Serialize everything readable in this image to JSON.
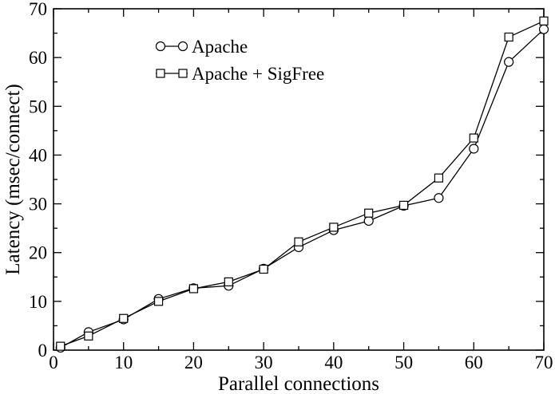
{
  "chart_data": {
    "type": "line",
    "title": "",
    "xlabel": "Parallel connections",
    "ylabel": "Latency (msec/connect)",
    "xlim": [
      0,
      70
    ],
    "ylim": [
      0,
      70
    ],
    "xticks": [
      0,
      10,
      20,
      30,
      40,
      50,
      60,
      70
    ],
    "yticks": [
      0,
      10,
      20,
      30,
      40,
      50,
      60,
      70
    ],
    "grid": false,
    "legend_position": "top-left",
    "series": [
      {
        "name": "Apache",
        "marker": "circle",
        "x": [
          1,
          5,
          10,
          15,
          20,
          25,
          30,
          35,
          40,
          45,
          50,
          55,
          60,
          65,
          70
        ],
        "y": [
          0.5,
          3.7,
          6.3,
          10.5,
          12.7,
          13.2,
          16.7,
          21.1,
          24.6,
          26.5,
          29.6,
          31.2,
          41.3,
          59.1,
          65.8
        ]
      },
      {
        "name": "Apache + SigFree",
        "marker": "square",
        "x": [
          1,
          5,
          10,
          15,
          20,
          25,
          30,
          35,
          40,
          45,
          50,
          55,
          60,
          65,
          70
        ],
        "y": [
          0.8,
          2.9,
          6.5,
          10.0,
          12.6,
          14.0,
          16.6,
          22.2,
          25.2,
          28.1,
          29.7,
          35.3,
          43.5,
          64.2,
          67.5
        ]
      }
    ]
  }
}
